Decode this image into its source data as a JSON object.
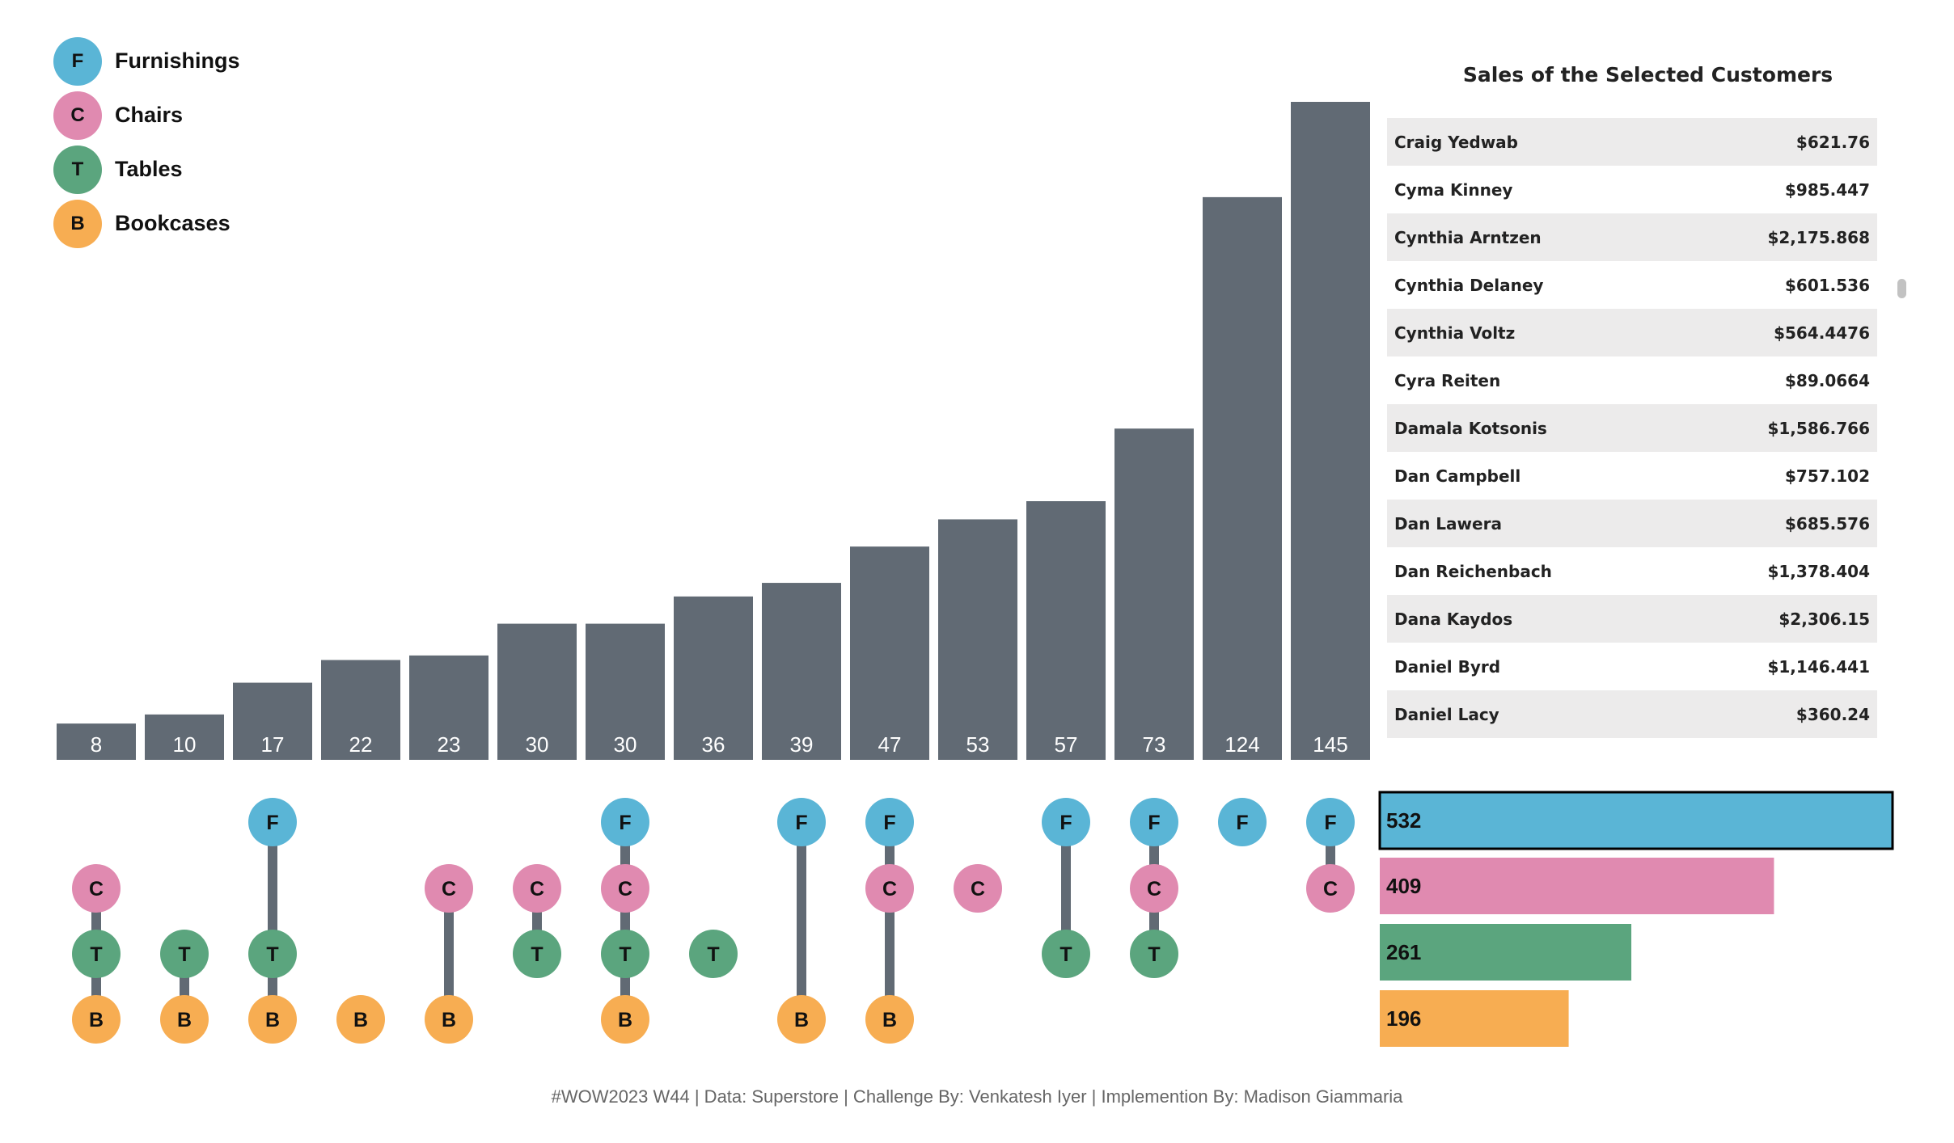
{
  "legend": [
    {
      "code": "F",
      "label": "Furnishings",
      "color": "#5ab5d6"
    },
    {
      "code": "C",
      "label": "Chairs",
      "color": "#e08ab0"
    },
    {
      "code": "T",
      "label": "Tables",
      "color": "#5ba57e"
    },
    {
      "code": "B",
      "label": "Bookcases",
      "color": "#f7ad52"
    }
  ],
  "colors": {
    "bar": "#616a74",
    "connector": "#616a74",
    "bar_label": "#ffffff"
  },
  "table": {
    "title": "Sales of the Selected Customers",
    "rows": [
      {
        "name": "Craig Yedwab",
        "value": "$621.76"
      },
      {
        "name": "Cyma Kinney",
        "value": "$985.447"
      },
      {
        "name": "Cynthia Arntzen",
        "value": "$2,175.868"
      },
      {
        "name": "Cynthia Delaney",
        "value": "$601.536"
      },
      {
        "name": "Cynthia Voltz",
        "value": "$564.4476"
      },
      {
        "name": "Cyra Reiten",
        "value": "$89.0664"
      },
      {
        "name": "Damala Kotsonis",
        "value": "$1,586.766"
      },
      {
        "name": "Dan Campbell",
        "value": "$757.102"
      },
      {
        "name": "Dan Lawera",
        "value": "$685.576"
      },
      {
        "name": "Dan Reichenbach",
        "value": "$1,378.404"
      },
      {
        "name": "Dana Kaydos",
        "value": "$2,306.15"
      },
      {
        "name": "Daniel Byrd",
        "value": "$1,146.441"
      },
      {
        "name": "Daniel Lacy",
        "value": "$360.24"
      }
    ]
  },
  "chart_data": [
    {
      "type": "bar",
      "values": [
        8,
        10,
        17,
        22,
        23,
        30,
        30,
        36,
        39,
        47,
        53,
        57,
        73,
        124,
        145
      ],
      "combinations": [
        "CTB",
        "TB",
        "FTB",
        "B",
        "CB",
        "CT",
        "FCTB",
        "T",
        "FB",
        "FCB",
        "C",
        "FT",
        "FCT",
        "F",
        "FC"
      ],
      "ylim": [
        0,
        145
      ]
    },
    {
      "type": "bar",
      "orientation": "horizontal",
      "categories": [
        "Furnishings",
        "Chairs",
        "Tables",
        "Bookcases"
      ],
      "values": [
        532,
        409,
        261,
        196
      ],
      "selected": "Furnishings"
    }
  ],
  "footer": "#WOW2023 W44 | Data: Superstore | Challenge By: Venkatesh Iyer | Implemention By: Madison Giammaria"
}
